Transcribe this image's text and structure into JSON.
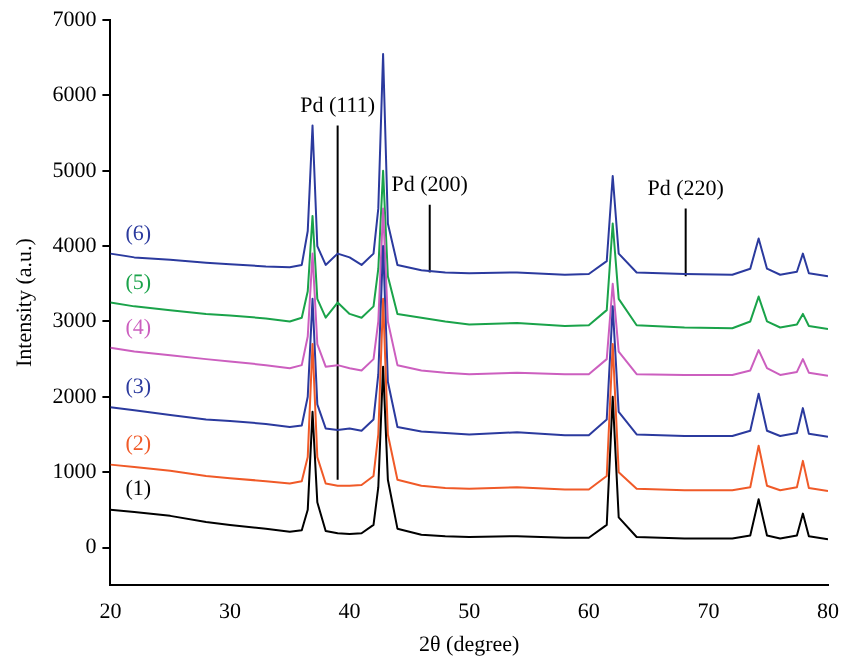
{
  "chart_data": {
    "type": "line",
    "xlabel": "2θ (degree)",
    "ylabel": "Intensity (a.u.)",
    "xlim": [
      20,
      80
    ],
    "xticks": [
      20,
      30,
      40,
      50,
      60,
      70,
      80
    ],
    "ylim": [
      -500,
      7000
    ],
    "yticks": [
      0,
      1000,
      2000,
      3000,
      4000,
      5000,
      6000,
      7000
    ],
    "grid": false,
    "legend": false,
    "marker": "none",
    "line_style": "solid",
    "x": [
      20,
      22,
      25,
      28,
      30,
      33,
      35,
      36,
      36.5,
      36.9,
      37.3,
      38,
      39,
      40,
      41,
      42,
      42.4,
      42.8,
      43.2,
      44,
      46,
      48,
      50,
      54,
      58,
      60,
      61.5,
      62,
      62.5,
      64,
      68,
      72,
      73.5,
      74.2,
      74.9,
      76,
      77.4,
      77.9,
      78.4,
      80
    ],
    "series": [
      {
        "name": "(1)",
        "color": "#000000",
        "values": [
          500,
          470,
          420,
          340,
          300,
          250,
          210,
          230,
          500,
          1800,
          600,
          220,
          190,
          180,
          190,
          300,
          800,
          2400,
          900,
          250,
          170,
          150,
          140,
          150,
          130,
          130,
          300,
          2000,
          400,
          140,
          120,
          120,
          160,
          640,
          160,
          120,
          160,
          450,
          150,
          110
        ]
      },
      {
        "name": "(2)",
        "color": "#f05a28",
        "values": [
          1100,
          1070,
          1020,
          950,
          920,
          880,
          850,
          880,
          1200,
          2700,
          1200,
          850,
          820,
          820,
          830,
          950,
          1500,
          3300,
          1500,
          900,
          820,
          790,
          780,
          800,
          770,
          770,
          950,
          2700,
          1000,
          780,
          760,
          760,
          800,
          1350,
          820,
          760,
          800,
          1150,
          790,
          750
        ]
      },
      {
        "name": "(3)",
        "color": "#2b3a9e",
        "values": [
          1860,
          1820,
          1760,
          1700,
          1680,
          1640,
          1600,
          1620,
          2000,
          3300,
          1900,
          1580,
          1560,
          1580,
          1550,
          1700,
          2300,
          4000,
          2200,
          1600,
          1540,
          1520,
          1500,
          1530,
          1490,
          1490,
          1700,
          3200,
          1800,
          1500,
          1480,
          1480,
          1550,
          2040,
          1550,
          1480,
          1520,
          1850,
          1510,
          1470
        ]
      },
      {
        "name": "(4)",
        "color": "#cc5fbf",
        "values": [
          2650,
          2600,
          2550,
          2500,
          2470,
          2420,
          2380,
          2420,
          2800,
          3900,
          2700,
          2400,
          2420,
          2380,
          2350,
          2500,
          3000,
          4500,
          3000,
          2420,
          2350,
          2320,
          2300,
          2320,
          2300,
          2300,
          2500,
          3500,
          2600,
          2300,
          2290,
          2290,
          2350,
          2620,
          2380,
          2290,
          2330,
          2500,
          2320,
          2280
        ]
      },
      {
        "name": "(5)",
        "color": "#1aa34a",
        "values": [
          3250,
          3200,
          3150,
          3100,
          3080,
          3040,
          3000,
          3050,
          3400,
          4400,
          3300,
          3050,
          3250,
          3100,
          3050,
          3200,
          3700,
          5000,
          3600,
          3100,
          3050,
          3000,
          2960,
          2980,
          2940,
          2950,
          3150,
          4300,
          3300,
          2950,
          2920,
          2910,
          3000,
          3330,
          3000,
          2920,
          2960,
          3100,
          2940,
          2900
        ]
      },
      {
        "name": "(6)",
        "color": "#2b3a9e",
        "values": [
          3900,
          3850,
          3820,
          3780,
          3760,
          3730,
          3720,
          3750,
          4200,
          5600,
          4000,
          3750,
          3900,
          3850,
          3750,
          3900,
          4500,
          6550,
          4300,
          3750,
          3680,
          3650,
          3640,
          3650,
          3620,
          3630,
          3800,
          4930,
          3900,
          3650,
          3630,
          3620,
          3700,
          4100,
          3700,
          3620,
          3660,
          3900,
          3640,
          3600
        ]
      },
      {
        "type": "line",
        "color": "#000000",
        "x": [
          39,
          39
        ],
        "values": [
          900,
          5600
        ]
      },
      {
        "type": "line",
        "color": "#000000",
        "x": [
          46.7,
          46.7
        ],
        "values": [
          3650,
          4550
        ]
      },
      {
        "type": "line",
        "color": "#000000",
        "x": [
          68.1,
          68.1
        ],
        "values": [
          3600,
          4500
        ]
      }
    ],
    "annotations": [
      {
        "text": "Pd (111)",
        "x": 39,
        "y": 5600
      },
      {
        "text": "Pd (200)",
        "x": 46.7,
        "y": 4550
      },
      {
        "text": "Pd (220)",
        "x": 68.1,
        "y": 4500
      }
    ]
  }
}
